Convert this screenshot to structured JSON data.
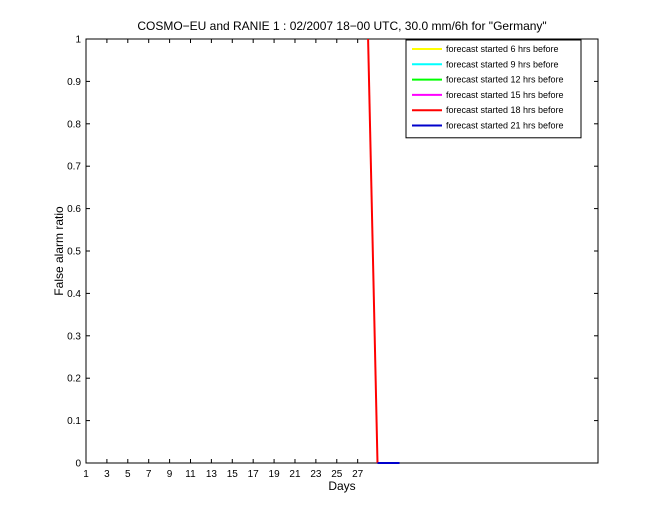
{
  "chart_data": {
    "type": "line",
    "title": "COSMO−EU and RANIE 1 : 02/2007 18−00 UTC, 30.0 mm/6h for \"Germany\"",
    "xlabel": "Days",
    "ylabel": "False alarm ratio",
    "xlim": [
      1,
      50
    ],
    "ylim": [
      0,
      1
    ],
    "xticks": [
      1,
      3,
      5,
      7,
      9,
      11,
      13,
      15,
      17,
      19,
      21,
      23,
      25,
      27
    ],
    "yticks": [
      0,
      0.1,
      0.2,
      0.3,
      0.4,
      0.5,
      0.6,
      0.7,
      0.8,
      0.9,
      1
    ],
    "ytick_labels": [
      "0",
      "0.1",
      "0.2",
      "0.3",
      "0.4",
      "0.5",
      "0.6",
      "0.7",
      "0.8",
      "0.9",
      "1"
    ],
    "legend_position": "top-right",
    "series": [
      {
        "name": "forecast started 6 hrs before",
        "color": "#ffff00",
        "x": [],
        "y": []
      },
      {
        "name": "forecast started 9 hrs before",
        "color": "#00ffff",
        "x": [],
        "y": []
      },
      {
        "name": "forecast started 12 hrs before",
        "color": "#00ff00",
        "x": [],
        "y": []
      },
      {
        "name": "forecast started 15 hrs before",
        "color": "#ff00ff",
        "x": [],
        "y": []
      },
      {
        "name": "forecast started 18 hrs before",
        "color": "#ff0000",
        "x": [
          28.0,
          28.9,
          28.9
        ],
        "y": [
          1,
          0,
          0
        ]
      },
      {
        "name": "forecast started 21 hrs before",
        "color": "#0000cc",
        "x": [
          28.9,
          31.0
        ],
        "y": [
          0,
          0
        ]
      }
    ]
  }
}
